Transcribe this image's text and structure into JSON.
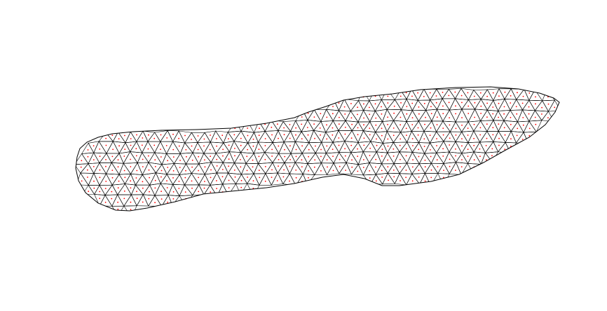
{
  "figure": {
    "kind": "triangular-mesh",
    "background_color": "#ffffff",
    "edge_color": "#000000",
    "centroid_marker_color": "#ff0000",
    "outline_color": "#000000"
  }
}
